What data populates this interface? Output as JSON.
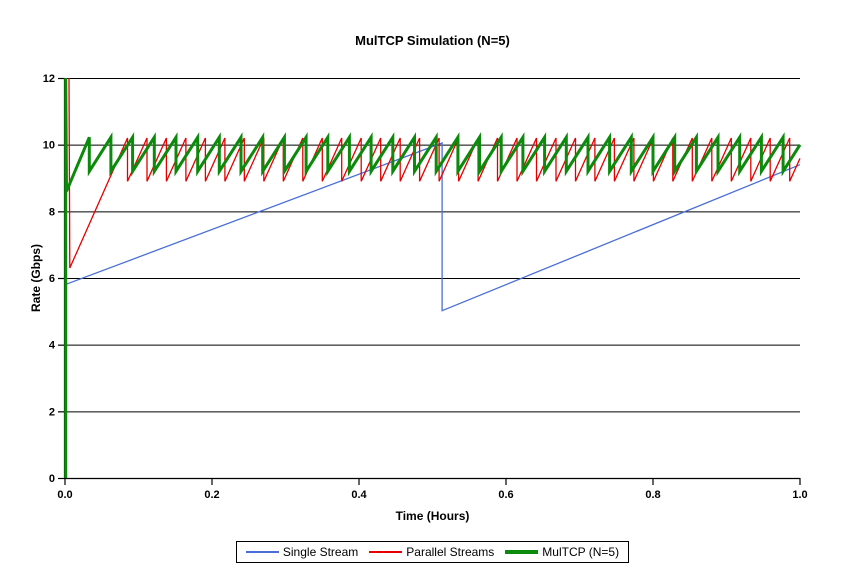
{
  "chart_data": {
    "type": "line",
    "title": "MulTCP Simulation (N=5)",
    "xlabel": "Time (Hours)",
    "ylabel": "Rate (Gbps)",
    "xlim": [
      0,
      1
    ],
    "ylim": [
      0,
      12
    ],
    "xticks": [
      0,
      0.2,
      0.4,
      0.6,
      0.8,
      1.0
    ],
    "xtick_labels": [
      "0.0",
      "0.2",
      "0.4",
      "0.6",
      "0.8",
      "1.0"
    ],
    "yticks": [
      0,
      2,
      4,
      6,
      8,
      10,
      12
    ],
    "ytick_labels": [
      "0",
      "2",
      "4",
      "6",
      "8",
      "10",
      "12"
    ],
    "grid": "horizontal",
    "grid_color": "#000000",
    "axis_color": "#000000",
    "legend_position": "bottom-center",
    "series": [
      {
        "name": "Single Stream",
        "color": "#4a6fd6",
        "width": 1.3,
        "segments": [
          {
            "type": "points",
            "points": [
              [
                0,
                5.8
              ],
              [
                0.513,
                10.05
              ],
              [
                0.513,
                5.02
              ],
              [
                1.0,
                9.4
              ]
            ]
          }
        ]
      },
      {
        "name": "Parallel Streams",
        "color": "#e60000",
        "width": 1.3,
        "segments": [
          {
            "type": "points",
            "points": [
              [
                0.0055,
                12
              ],
              [
                0.0065,
                6.3
              ],
              [
                0.085,
                10.2
              ]
            ]
          },
          {
            "type": "sawtooth",
            "start": 0.085,
            "end": 1.0,
            "min": 8.9,
            "max": 10.2,
            "period": 0.0265
          }
        ]
      },
      {
        "name": "MulTCP (N=5)",
        "color": "#0b8a0b",
        "width": 3,
        "segments": [
          {
            "type": "points",
            "points": [
              [
                0.001,
                0
              ],
              [
                0.001,
                12
              ],
              [
                0.002,
                8.6
              ],
              [
                0.033,
                10.22
              ]
            ]
          },
          {
            "type": "sawtooth",
            "start": 0.033,
            "end": 1.0,
            "min": 9.2,
            "max": 10.22,
            "period": 0.0295
          }
        ]
      }
    ]
  }
}
